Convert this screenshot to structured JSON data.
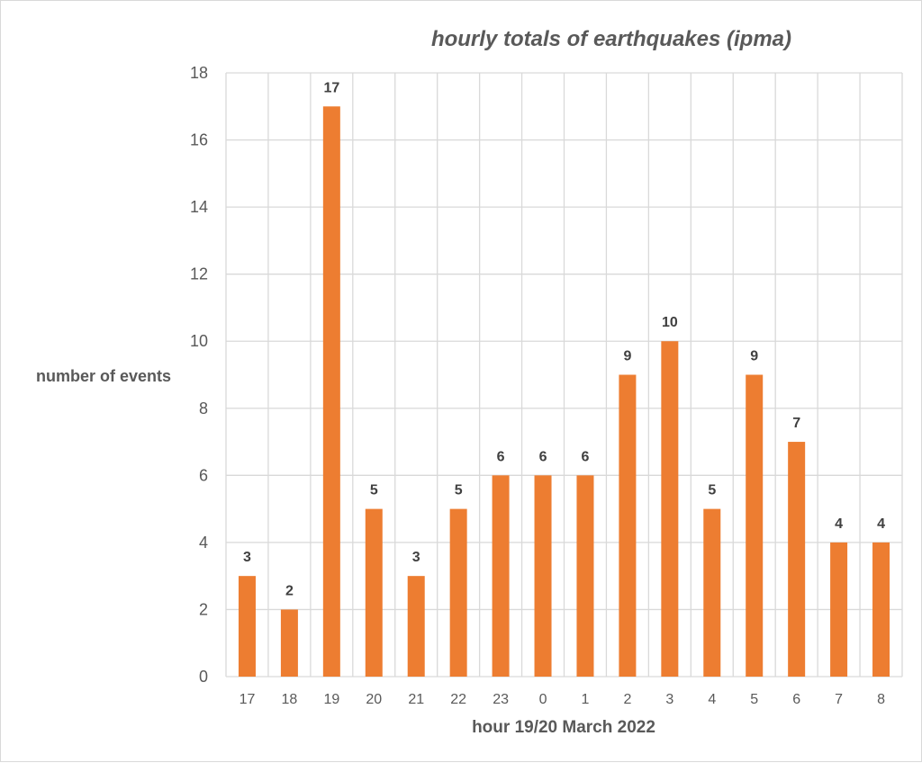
{
  "chart_data": {
    "type": "bar",
    "title": "hourly totals of earthquakes  (ipma)",
    "xlabel": "hour 19/20 March 2022",
    "ylabel": "number of events",
    "categories": [
      "17",
      "18",
      "19",
      "20",
      "21",
      "22",
      "23",
      "0",
      "1",
      "2",
      "3",
      "4",
      "5",
      "6",
      "7",
      "8"
    ],
    "values": [
      3,
      2,
      17,
      5,
      3,
      5,
      6,
      6,
      6,
      9,
      10,
      5,
      9,
      7,
      4,
      4
    ],
    "ylim": [
      0,
      18
    ],
    "yticks": [
      0,
      2,
      4,
      6,
      8,
      10,
      12,
      14,
      16,
      18
    ],
    "grid": true,
    "legend": "none",
    "data_labels": true,
    "bar_color": "#ED7D31",
    "grid_color": "#D9D9D9"
  }
}
